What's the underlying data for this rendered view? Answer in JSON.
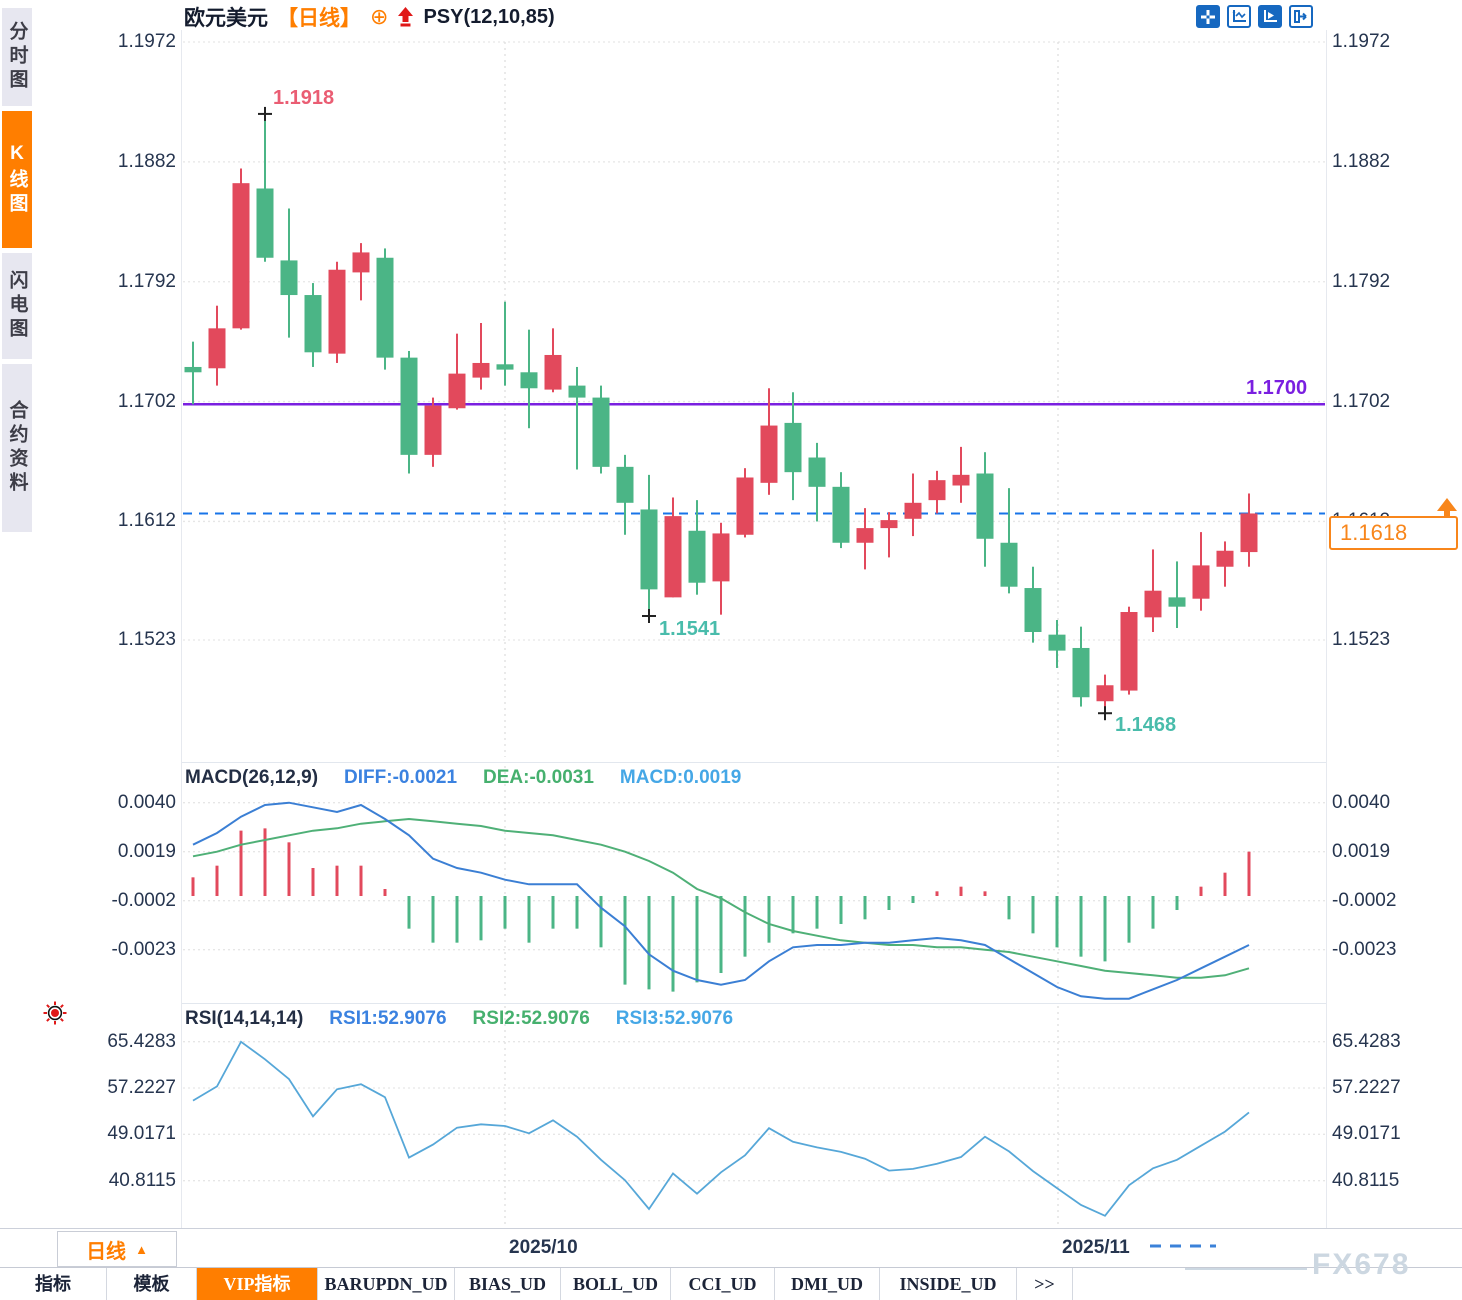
{
  "app": {
    "watermark": "FX678"
  },
  "sidebar": {
    "items": [
      {
        "label": "分时图",
        "active": false
      },
      {
        "label": "K线图",
        "active": true
      },
      {
        "label": "闪电图",
        "active": false
      },
      {
        "label": "合约资料",
        "active": false
      }
    ]
  },
  "header": {
    "symbol": "欧元美元",
    "period": "【日线】",
    "add_icon": "⊕",
    "indicator": "PSY(12,10,85)"
  },
  "toolbar": {
    "icons": [
      "move-crosshair",
      "axis-scale",
      "axis-play",
      "collapse-right"
    ]
  },
  "price_panel": {
    "left_labels": [
      "1.1972",
      "1.1882",
      "1.1792",
      "1.1702",
      "1.1612",
      "1.1523"
    ],
    "right_labels": [
      "1.1972",
      "1.1882",
      "1.1792",
      "1.1702",
      "1.1612",
      "1.1523"
    ],
    "annotations": {
      "high": "1.1918",
      "low_mid": "1.1541",
      "low_right": "1.1468",
      "hline_label": "1.1700",
      "price_tag": "1.1618"
    }
  },
  "macd_panel": {
    "title": "MACD(26,12,9)",
    "diff_label": "DIFF:-0.0021",
    "dea_label": "DEA:-0.0031",
    "macd_label": "MACD:0.0019",
    "y_labels": [
      "0.0040",
      "0.0019",
      "-0.0002",
      "-0.0023"
    ]
  },
  "rsi_panel": {
    "title": "RSI(14,14,14)",
    "rsi1_label": "RSI1:52.9076",
    "rsi2_label": "RSI2:52.9076",
    "rsi3_label": "RSI3:52.9076",
    "y_labels": [
      "65.4283",
      "57.2227",
      "49.0171",
      "40.8115"
    ]
  },
  "xaxis": {
    "labels": [
      "2025/10",
      "2025/11"
    ]
  },
  "period_selector": {
    "label": "日线",
    "arrow": "▲"
  },
  "bottom_tabs": {
    "items": [
      {
        "label": "指标",
        "active": false
      },
      {
        "label": "模板",
        "active": false
      },
      {
        "label": "VIP指标",
        "active": true
      },
      {
        "label": "BARUPDN_UD",
        "active": false
      },
      {
        "label": "BIAS_UD",
        "active": false
      },
      {
        "label": "BOLL_UD",
        "active": false
      },
      {
        "label": "CCI_UD",
        "active": false
      },
      {
        "label": "DMI_UD",
        "active": false
      },
      {
        "label": "INSIDE_UD",
        "active": false
      },
      {
        "label": ">>",
        "active": false
      }
    ]
  },
  "colors": {
    "up": "#e2495c",
    "down": "#4bb586",
    "accent_orange": "#ff7e00",
    "tag_orange": "#f8861b",
    "purple_line": "#7a1fe0",
    "blue_dashed": "#1874e8",
    "diff_line": "#3b7fd4",
    "dea_line": "#4fb077",
    "rsi_line": "#56a7d8",
    "toolbar_blue": "#1668c0",
    "grid": "#e6e6e6",
    "marker": "#222222",
    "high_label": "#ea5d73",
    "low_label": "#49bcab"
  },
  "chart_data": {
    "type": "candlestick",
    "title": "欧元美元 日线 (EUR/USD daily) with MACD and RSI",
    "y_axis": {
      "ticks": [
        1.1972,
        1.1882,
        1.1792,
        1.1702,
        1.1612,
        1.1523
      ]
    },
    "x_labels": [
      {
        "text": "2025/10",
        "candle_index": 13
      },
      {
        "text": "2025/11",
        "candle_index": 36
      }
    ],
    "candles_ohlc": [
      [
        1.1728,
        1.1747,
        1.17,
        1.1724
      ],
      [
        1.1727,
        1.1774,
        1.1714,
        1.1757
      ],
      [
        1.1757,
        1.1877,
        1.1756,
        1.1866
      ],
      [
        1.1862,
        1.1918,
        1.1807,
        1.181
      ],
      [
        1.1808,
        1.1847,
        1.175,
        1.1782
      ],
      [
        1.1782,
        1.1791,
        1.1728,
        1.1739
      ],
      [
        1.1738,
        1.1807,
        1.1731,
        1.1801
      ],
      [
        1.1799,
        1.1821,
        1.1778,
        1.1814
      ],
      [
        1.181,
        1.1817,
        1.1726,
        1.1735
      ],
      [
        1.1735,
        1.174,
        1.1648,
        1.1662
      ],
      [
        1.1662,
        1.1705,
        1.1653,
        1.1699
      ],
      [
        1.1697,
        1.1753,
        1.1696,
        1.1723
      ],
      [
        1.172,
        1.1761,
        1.1711,
        1.1731
      ],
      [
        1.173,
        1.1777,
        1.1714,
        1.1726
      ],
      [
        1.1724,
        1.1756,
        1.1682,
        1.1712
      ],
      [
        1.1711,
        1.1757,
        1.1709,
        1.1737
      ],
      [
        1.1714,
        1.1728,
        1.1651,
        1.1705
      ],
      [
        1.1705,
        1.1714,
        1.1648,
        1.1653
      ],
      [
        1.1653,
        1.1662,
        1.1602,
        1.1626
      ],
      [
        1.1621,
        1.1647,
        1.1541,
        1.1561
      ],
      [
        1.1555,
        1.163,
        1.1555,
        1.1616
      ],
      [
        1.1605,
        1.1628,
        1.1557,
        1.1566
      ],
      [
        1.1567,
        1.1611,
        1.1542,
        1.1603
      ],
      [
        1.1602,
        1.1652,
        1.16,
        1.1645
      ],
      [
        1.1641,
        1.1712,
        1.1632,
        1.1684
      ],
      [
        1.1686,
        1.1709,
        1.1628,
        1.1649
      ],
      [
        1.166,
        1.1671,
        1.1612,
        1.1638
      ],
      [
        1.1638,
        1.1649,
        1.1592,
        1.1596
      ],
      [
        1.1596,
        1.1622,
        1.1576,
        1.1607
      ],
      [
        1.1607,
        1.1619,
        1.1585,
        1.1613
      ],
      [
        1.1614,
        1.1648,
        1.1601,
        1.1626
      ],
      [
        1.1628,
        1.165,
        1.1618,
        1.1643
      ],
      [
        1.1639,
        1.1668,
        1.1626,
        1.1647
      ],
      [
        1.1648,
        1.1664,
        1.1578,
        1.1599
      ],
      [
        1.1596,
        1.1637,
        1.1558,
        1.1563
      ],
      [
        1.1562,
        1.1578,
        1.1521,
        1.1529
      ],
      [
        1.1527,
        1.1538,
        1.1502,
        1.1515
      ],
      [
        1.1517,
        1.1533,
        1.1473,
        1.148
      ],
      [
        1.1477,
        1.1497,
        1.1468,
        1.1489
      ],
      [
        1.1485,
        1.1548,
        1.1482,
        1.1544
      ],
      [
        1.154,
        1.1591,
        1.1529,
        1.156
      ],
      [
        1.1555,
        1.1582,
        1.1532,
        1.1548
      ],
      [
        1.1554,
        1.1604,
        1.1545,
        1.1579
      ],
      [
        1.1578,
        1.1597,
        1.1563,
        1.159
      ],
      [
        1.1589,
        1.1633,
        1.1578,
        1.1618
      ]
    ],
    "hlines": [
      {
        "value": 1.17,
        "label": "1.1700",
        "style": "solid",
        "color": "#7a1fe0"
      },
      {
        "value": 1.1618,
        "label": "1.1618",
        "style": "dashed",
        "color": "#1874e8"
      }
    ],
    "markers": [
      {
        "candle_index": 3,
        "type": "high",
        "value": 1.1918,
        "label": "1.1918"
      },
      {
        "candle_index": 19,
        "type": "low",
        "value": 1.1541,
        "label": "1.1541"
      },
      {
        "candle_index": 38,
        "type": "low",
        "value": 1.1468,
        "label": "1.1468"
      }
    ],
    "last_price": 1.1618,
    "macd": {
      "params": [
        26,
        12,
        9
      ],
      "current": {
        "diff": -0.0021,
        "dea": -0.0031,
        "macd": 0.0019
      },
      "ticks": [
        0.004,
        0.0019,
        -0.0002,
        -0.0023
      ],
      "diff": [
        0.0022,
        0.0027,
        0.0034,
        0.0039,
        0.004,
        0.0038,
        0.0036,
        0.0039,
        0.0033,
        0.0026,
        0.0016,
        0.0012,
        0.001,
        0.0007,
        0.0005,
        0.0005,
        0.0005,
        -0.0005,
        -0.0013,
        -0.0025,
        -0.0032,
        -0.0036,
        -0.0038,
        -0.0036,
        -0.0028,
        -0.0022,
        -0.0021,
        -0.0021,
        -0.002,
        -0.002,
        -0.0019,
        -0.0018,
        -0.0019,
        -0.0021,
        -0.0027,
        -0.0033,
        -0.0039,
        -0.0043,
        -0.0044,
        -0.0044,
        -0.004,
        -0.0036,
        -0.0031,
        -0.0026,
        -0.0021
      ],
      "dea": [
        0.0017,
        0.0019,
        0.0022,
        0.0024,
        0.0026,
        0.0028,
        0.0029,
        0.0031,
        0.0032,
        0.0033,
        0.0032,
        0.0031,
        0.003,
        0.0028,
        0.0027,
        0.0026,
        0.0024,
        0.0022,
        0.0019,
        0.0015,
        0.001,
        0.0003,
        -0.0001,
        -0.0007,
        -0.0012,
        -0.0015,
        -0.0017,
        -0.0019,
        -0.002,
        -0.0021,
        -0.0021,
        -0.0022,
        -0.0022,
        -0.0023,
        -0.0024,
        -0.0026,
        -0.0028,
        -0.003,
        -0.0032,
        -0.0033,
        -0.0034,
        -0.0035,
        -0.0035,
        -0.0034,
        -0.0031
      ],
      "hist": [
        0.0008,
        0.0013,
        0.0028,
        0.0029,
        0.0023,
        0.0012,
        0.0013,
        0.0013,
        0.0003,
        -0.0014,
        -0.002,
        -0.002,
        -0.0019,
        -0.0014,
        -0.002,
        -0.0014,
        -0.0014,
        -0.0022,
        -0.0038,
        -0.004,
        -0.0041,
        -0.0037,
        -0.0033,
        -0.0026,
        -0.002,
        -0.0016,
        -0.0014,
        -0.0012,
        -0.001,
        -0.0006,
        -0.0003,
        0.0002,
        0.0004,
        0.0002,
        -0.001,
        -0.0016,
        -0.0022,
        -0.0026,
        -0.0028,
        -0.002,
        -0.0014,
        -0.0006,
        0.0004,
        0.001,
        0.0019
      ]
    },
    "rsi": {
      "params": [
        14,
        14,
        14
      ],
      "current": {
        "rsi1": 52.9076,
        "rsi2": 52.9076,
        "rsi3": 52.9076
      },
      "ticks": [
        65.4283,
        57.2227,
        49.0171,
        40.8115
      ],
      "values": [
        55.0,
        57.5,
        65.4,
        62.3,
        58.8,
        52.2,
        57.0,
        57.9,
        55.6,
        44.9,
        47.2,
        50.2,
        50.8,
        50.5,
        49.2,
        51.5,
        48.6,
        44.5,
        40.9,
        35.8,
        42.1,
        38.5,
        42.3,
        45.3,
        50.1,
        47.7,
        46.7,
        45.9,
        44.7,
        42.6,
        42.9,
        43.8,
        45.0,
        48.6,
        46.0,
        42.5,
        39.5,
        36.5,
        34.6,
        40.0,
        43.0,
        44.5,
        47.0,
        49.5,
        52.9
      ]
    }
  }
}
